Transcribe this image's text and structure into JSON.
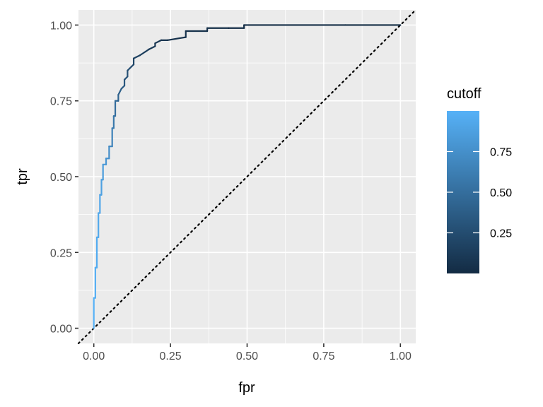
{
  "chart_data": {
    "type": "line",
    "xlabel": "fpr",
    "ylabel": "tpr",
    "xlim": [
      -0.05,
      1.05
    ],
    "ylim": [
      -0.05,
      1.05
    ],
    "x_ticks": [
      0.0,
      0.25,
      0.5,
      0.75,
      1.0
    ],
    "y_ticks": [
      0.0,
      0.25,
      0.5,
      0.75,
      1.0
    ],
    "x_tick_labels": [
      "0.00",
      "0.25",
      "0.50",
      "0.75",
      "1.00"
    ],
    "y_tick_labels": [
      "0.00",
      "0.25",
      "0.50",
      "0.75",
      "1.00"
    ],
    "grid": true,
    "background": "#EBEBEB",
    "reference_line": {
      "style": "dotted",
      "color": "#000000",
      "from": [
        -0.05,
        -0.05
      ],
      "to": [
        1.05,
        1.05
      ]
    },
    "color_scale": {
      "title": "cutoff",
      "low_color": "#132B43",
      "high_color": "#56B1F7",
      "range": [
        0.0,
        1.0
      ],
      "breaks": [
        0.25,
        0.5,
        0.75
      ],
      "break_labels": [
        "0.25",
        "0.50",
        "0.75"
      ],
      "legend_position": "right"
    },
    "series": [
      {
        "x": [
          0.0,
          0.0,
          0.005,
          0.005,
          0.01,
          0.01,
          0.015,
          0.015,
          0.02,
          0.02,
          0.025,
          0.025,
          0.03,
          0.03,
          0.04,
          0.04,
          0.05,
          0.05,
          0.06,
          0.06,
          0.065,
          0.065,
          0.07,
          0.07,
          0.08,
          0.08,
          0.09,
          0.1,
          0.1,
          0.11,
          0.11,
          0.12,
          0.12,
          0.13,
          0.13,
          0.15,
          0.15,
          0.18,
          0.18,
          0.2,
          0.2,
          0.22,
          0.22,
          0.24,
          0.24,
          0.3,
          0.3,
          0.37,
          0.37,
          0.44,
          0.44,
          0.49,
          0.49,
          0.82,
          0.82,
          1.0
        ],
        "y": [
          0.0,
          0.1,
          0.1,
          0.2,
          0.2,
          0.3,
          0.3,
          0.38,
          0.38,
          0.44,
          0.44,
          0.49,
          0.49,
          0.54,
          0.54,
          0.56,
          0.56,
          0.6,
          0.6,
          0.66,
          0.66,
          0.7,
          0.7,
          0.75,
          0.75,
          0.77,
          0.79,
          0.8,
          0.82,
          0.83,
          0.85,
          0.86,
          0.86,
          0.87,
          0.89,
          0.9,
          0.9,
          0.92,
          0.92,
          0.93,
          0.94,
          0.95,
          0.95,
          0.95,
          0.95,
          0.96,
          0.98,
          0.98,
          0.99,
          0.99,
          0.99,
          0.99,
          1.0,
          1.0,
          1.0,
          1.0
        ],
        "cutoff": [
          1.0,
          0.99,
          0.98,
          0.97,
          0.96,
          0.95,
          0.94,
          0.93,
          0.92,
          0.9,
          0.88,
          0.86,
          0.85,
          0.83,
          0.8,
          0.77,
          0.74,
          0.7,
          0.66,
          0.62,
          0.58,
          0.55,
          0.5,
          0.46,
          0.42,
          0.39,
          0.36,
          0.33,
          0.3,
          0.28,
          0.26,
          0.24,
          0.22,
          0.2,
          0.18,
          0.16,
          0.14,
          0.12,
          0.11,
          0.1,
          0.09,
          0.08,
          0.07,
          0.06,
          0.055,
          0.05,
          0.045,
          0.04,
          0.035,
          0.03,
          0.025,
          0.02,
          0.015,
          0.01,
          0.005,
          0.0
        ]
      }
    ]
  }
}
